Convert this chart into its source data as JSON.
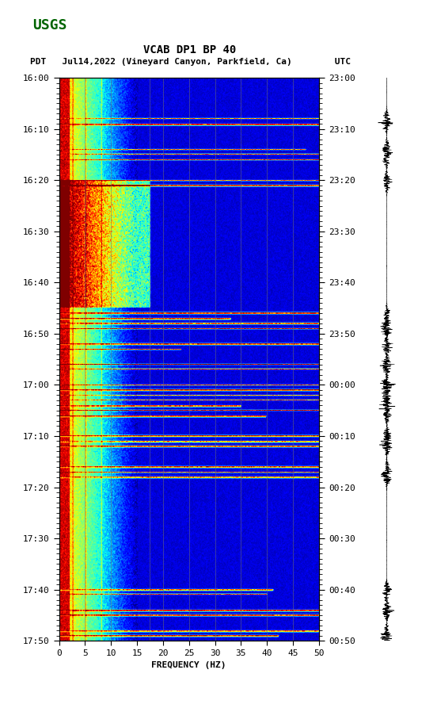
{
  "title_line1": "VCAB DP1 BP 40",
  "title_line2_pdt": "PDT   Jul14,2022 (Vineyard Canyon, Parkfield, Ca)        UTC",
  "xlabel": "FREQUENCY (HZ)",
  "freq_min": 0,
  "freq_max": 50,
  "freq_ticks": [
    0,
    5,
    10,
    15,
    20,
    25,
    30,
    35,
    40,
    45,
    50
  ],
  "time_labels_left": [
    "16:00",
    "16:10",
    "16:20",
    "16:30",
    "16:40",
    "16:50",
    "17:00",
    "17:10",
    "17:20",
    "17:30",
    "17:40",
    "17:50"
  ],
  "time_labels_right": [
    "23:00",
    "23:10",
    "23:20",
    "23:30",
    "23:40",
    "23:50",
    "00:00",
    "00:10",
    "00:20",
    "00:30",
    "00:40",
    "00:50"
  ],
  "n_time_steps": 600,
  "n_freq_steps": 500,
  "vgrid_freqs": [
    5,
    10,
    17.5,
    20,
    25,
    30,
    35,
    40,
    45
  ],
  "colormap": "jet",
  "fig_width": 5.52,
  "fig_height": 8.93,
  "usgs_green": "#006400",
  "title_fontsize": 9,
  "label_fontsize": 8,
  "tick_fontsize": 8
}
